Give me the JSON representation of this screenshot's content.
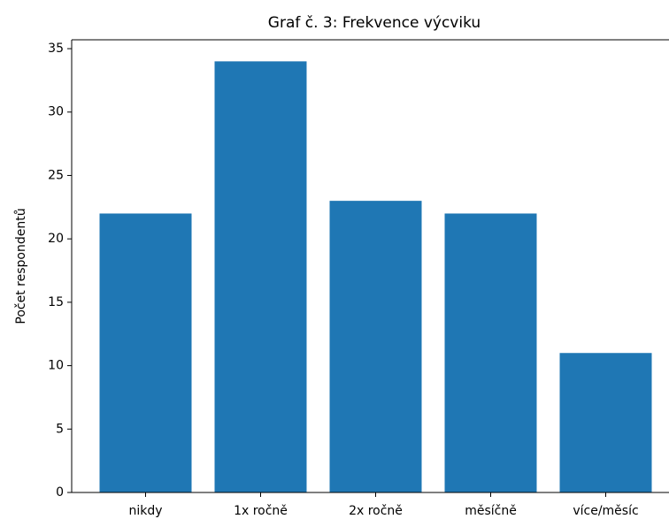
{
  "chart_data": {
    "type": "bar",
    "title": "Graf č. 3: Frekvence výcviku",
    "y_label": "Počet respondentů",
    "categories": [
      "nikdy",
      "1x ročně",
      "2x ročně",
      "měsíčně",
      "více/měsíc"
    ],
    "values": [
      22,
      34,
      23,
      22,
      11
    ],
    "color": "#1f77b4",
    "ylim": [
      0,
      35.7
    ],
    "yticks": [
      0,
      5,
      10,
      15,
      20,
      25,
      30,
      35
    ],
    "grid": false
  }
}
